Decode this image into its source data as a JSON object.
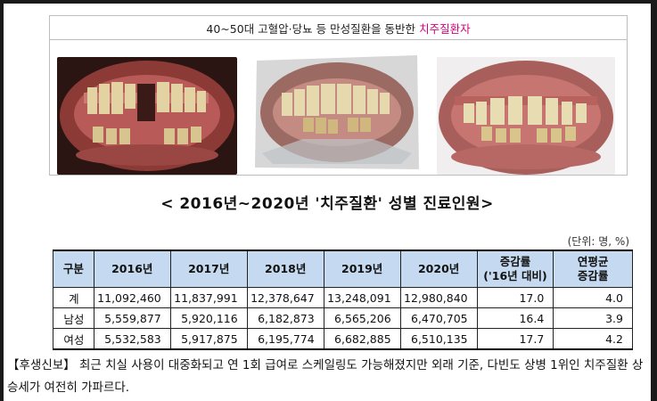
{
  "caption": {
    "prefix": "40~50대 고혈압·당뇨 등 만성질환을 동반한",
    "highlight": "치주질환자",
    "accent_color": "#d4007a"
  },
  "photos": [
    {
      "name": "dental-photo-1",
      "subject": "teeth-with-periodontal-disease"
    },
    {
      "name": "dental-photo-2",
      "subject": "teeth-with-periodontal-disease"
    },
    {
      "name": "dental-photo-3",
      "subject": "teeth-with-periodontal-disease"
    }
  ],
  "title": "< 2016년~2020년 '치주질환' 성별 진료인원>",
  "unit": "(단위: 명, %)",
  "table": {
    "header_color": "#c5d9f0",
    "headers": [
      "구분",
      "2016년",
      "2017년",
      "2018년",
      "2019년",
      "2020년",
      "증감률\n('16년 대비)",
      "연평균\n증감률"
    ],
    "rows": [
      [
        "계",
        "11,092,460",
        "11,837,991",
        "12,378,647",
        "13,248,091",
        "12,980,840",
        "17.0",
        "4.0"
      ],
      [
        "남성",
        "5,559,877",
        "5,920,116",
        "6,182,873",
        "6,565,206",
        "6,470,705",
        "16.4",
        "3.9"
      ],
      [
        "여성",
        "5,532,583",
        "5,917,875",
        "6,195,774",
        "6,682,885",
        "6,510,135",
        "17.7",
        "4.2"
      ]
    ]
  },
  "note": "【후생신보】 최근 치실 사용이 대중화되고 연 1회 급여로 스케일링도 가능해졌지만 외래 기준, 다빈도 상병 1위인 치주질환 상승세가 여전히 가파르다."
}
